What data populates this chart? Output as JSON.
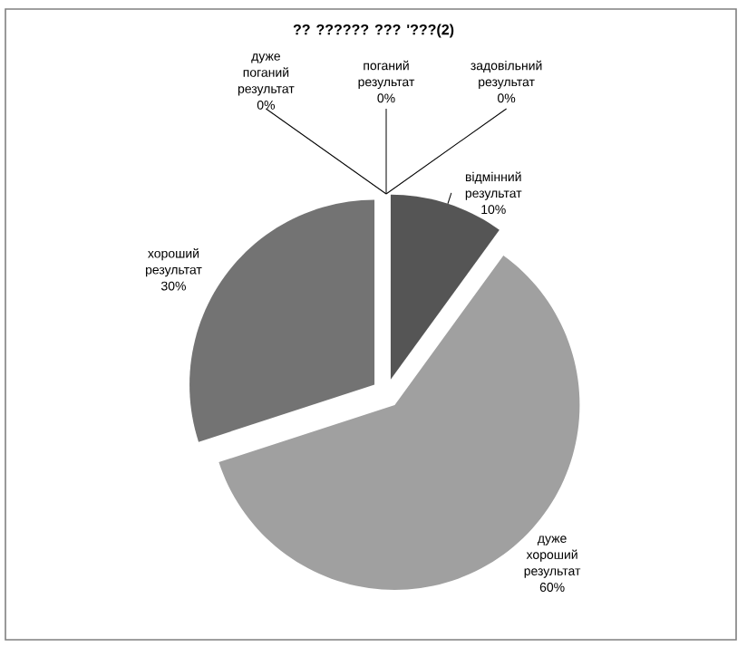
{
  "chart_data": {
    "type": "pie",
    "title": "?? ?????? ??? '???(2)",
    "categories": [
      "відмінний результат",
      "дуже хороший результат",
      "хороший результат",
      "дуже поганий результат",
      "поганий результат",
      "задовільний результат"
    ],
    "values": [
      10,
      60,
      30,
      0,
      0,
      0
    ],
    "value_labels": [
      "10%",
      "60%",
      "30%",
      "0%",
      "0%",
      "0%"
    ],
    "colors": [
      "#555555",
      "#a0a0a0",
      "#737373",
      "#4a4a4a",
      "#888888",
      "#bdbdbd"
    ]
  }
}
